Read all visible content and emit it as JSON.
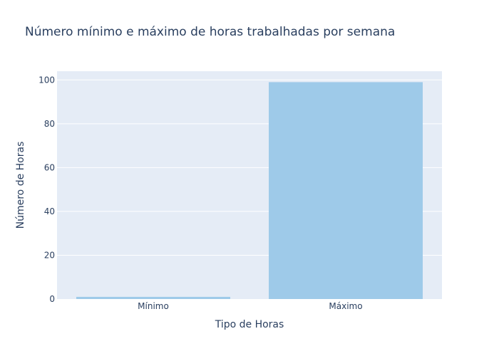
{
  "chart_data": {
    "type": "bar",
    "title": "Número mínimo e máximo de horas trabalhadas por semana",
    "xlabel": "Tipo de Horas",
    "ylabel": "Número de Horas",
    "categories": [
      "Mínimo",
      "Máximo"
    ],
    "values": [
      1,
      99
    ],
    "ylim": [
      0,
      104
    ],
    "yticks": [
      0,
      20,
      40,
      60,
      80,
      100
    ],
    "grid": true,
    "colors": {
      "bar": "#9ecae9",
      "plot_background": "#e5ecf6",
      "grid": "#ffffff",
      "text": "#2a3f5f"
    }
  }
}
